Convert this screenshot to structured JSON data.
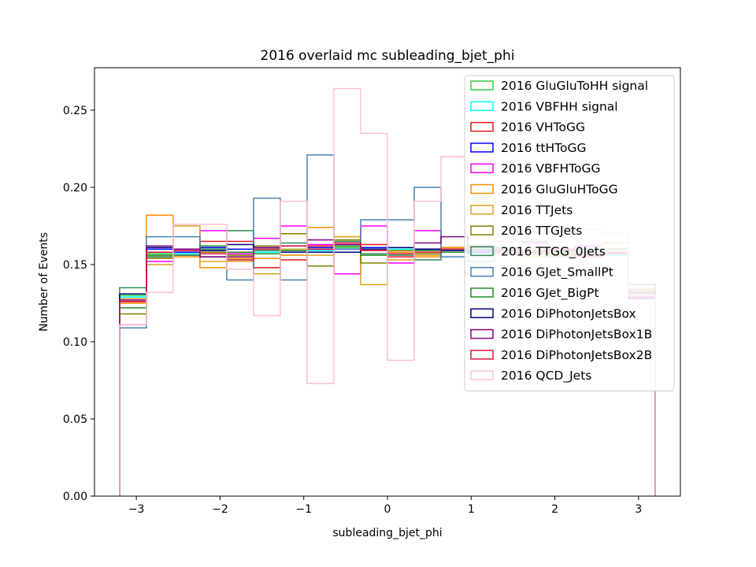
{
  "chart_data": {
    "type": "histogram-step",
    "title": "2016 overlaid mc subleading_bjet_phi",
    "xlabel": "subleading_bjet_phi",
    "ylabel": "Number of Events",
    "xlim": [
      -3.5,
      3.5
    ],
    "ylim": [
      0,
      0.2775
    ],
    "xticks": [
      -3,
      -2,
      -1,
      0,
      1,
      2,
      3
    ],
    "xtick_labels": [
      "−3",
      "−2",
      "−1",
      "0",
      "1",
      "2",
      "3"
    ],
    "yticks": [
      0.0,
      0.05,
      0.1,
      0.15,
      0.2,
      0.25
    ],
    "ytick_labels": [
      "0.00",
      "0.05",
      "0.10",
      "0.15",
      "0.20",
      "0.25"
    ],
    "legend_position": "top-right",
    "bin_edges": [
      -3.2,
      -2.88,
      -2.56,
      -2.24,
      -1.92,
      -1.6,
      -1.28,
      -0.96,
      -0.64,
      -0.32,
      0.0,
      0.32,
      0.64,
      0.96,
      1.28,
      1.6,
      1.92,
      2.24,
      2.56,
      2.88,
      3.2
    ],
    "series": [
      {
        "name": "2016 GluGluToHH signal",
        "color": "#2ecc40",
        "values": [
          0.13,
          0.157,
          0.158,
          0.16,
          0.158,
          0.16,
          0.159,
          0.16,
          0.161,
          0.16,
          0.158,
          0.157,
          0.159,
          0.158,
          0.159,
          0.158,
          0.157,
          0.158,
          0.157,
          0.131
        ]
      },
      {
        "name": "2016 VBFHH signal",
        "color": "#00ffff",
        "values": [
          0.129,
          0.158,
          0.157,
          0.159,
          0.157,
          0.158,
          0.16,
          0.159,
          0.16,
          0.161,
          0.16,
          0.159,
          0.16,
          0.157,
          0.158,
          0.159,
          0.158,
          0.157,
          0.156,
          0.13
        ]
      },
      {
        "name": "2016 VHToGG",
        "color": "#e41a1c",
        "values": [
          0.126,
          0.155,
          0.156,
          0.165,
          0.165,
          0.148,
          0.153,
          0.162,
          0.158,
          0.163,
          0.155,
          0.16,
          0.161,
          0.158,
          0.157,
          0.159,
          0.156,
          0.155,
          0.157,
          0.129
        ]
      },
      {
        "name": "2016 ttHToGG",
        "color": "#0000ff",
        "values": [
          0.131,
          0.16,
          0.158,
          0.161,
          0.16,
          0.159,
          0.158,
          0.161,
          0.16,
          0.161,
          0.159,
          0.16,
          0.158,
          0.159,
          0.16,
          0.158,
          0.159,
          0.157,
          0.158,
          0.128
        ]
      },
      {
        "name": "2016 VBFHToGG",
        "color": "#ff00ff",
        "values": [
          0.111,
          0.152,
          0.16,
          0.172,
          0.157,
          0.167,
          0.175,
          0.163,
          0.144,
          0.175,
          0.151,
          0.172,
          0.159,
          0.16,
          0.158,
          0.164,
          0.16,
          0.162,
          0.158,
          0.132
        ]
      },
      {
        "name": "2016 GluGluHToGG",
        "color": "#ff8c00",
        "values": [
          0.125,
          0.182,
          0.155,
          0.148,
          0.154,
          0.154,
          0.156,
          0.174,
          0.168,
          0.16,
          0.158,
          0.155,
          0.161,
          0.157,
          0.16,
          0.158,
          0.156,
          0.157,
          0.16,
          0.13
        ]
      },
      {
        "name": "2016 TTJets",
        "color": "#daa520",
        "values": [
          0.128,
          0.15,
          0.175,
          0.152,
          0.152,
          0.144,
          0.16,
          0.156,
          0.168,
          0.137,
          0.153,
          0.156,
          0.158,
          0.162,
          0.16,
          0.155,
          0.16,
          0.158,
          0.164,
          0.133
        ]
      },
      {
        "name": "2016 TTGJets",
        "color": "#808000",
        "values": [
          0.118,
          0.154,
          0.156,
          0.158,
          0.156,
          0.162,
          0.17,
          0.149,
          0.166,
          0.151,
          0.159,
          0.157,
          0.16,
          0.158,
          0.159,
          0.157,
          0.158,
          0.159,
          0.157,
          0.134
        ]
      },
      {
        "name": "2016 TTGG_0Jets",
        "color": "#2e8b57",
        "values": [
          0.135,
          0.155,
          0.156,
          0.16,
          0.172,
          0.159,
          0.164,
          0.158,
          0.165,
          0.157,
          0.156,
          0.153,
          0.158,
          0.157,
          0.161,
          0.165,
          0.159,
          0.16,
          0.158,
          0.137
        ]
      },
      {
        "name": "2016 GJet_SmallPt",
        "color": "#4682b4",
        "values": [
          0.109,
          0.168,
          0.168,
          0.155,
          0.14,
          0.193,
          0.14,
          0.221,
          0.16,
          0.179,
          0.179,
          0.2,
          0.155,
          0.152,
          0.158,
          0.16,
          0.155,
          0.159,
          0.157,
          0.13
        ]
      },
      {
        "name": "2016 GJet_BigPt",
        "color": "#228b22",
        "values": [
          0.122,
          0.156,
          0.159,
          0.162,
          0.158,
          0.157,
          0.159,
          0.16,
          0.162,
          0.156,
          0.157,
          0.159,
          0.158,
          0.16,
          0.158,
          0.159,
          0.157,
          0.158,
          0.16,
          0.131
        ]
      },
      {
        "name": "2016 DiPhotonJetsBox",
        "color": "#000080",
        "values": [
          0.131,
          0.161,
          0.159,
          0.159,
          0.163,
          0.161,
          0.158,
          0.158,
          0.158,
          0.16,
          0.161,
          0.16,
          0.159,
          0.158,
          0.159,
          0.158,
          0.159,
          0.157,
          0.158,
          0.13
        ]
      },
      {
        "name": "2016 DiPhotonJetsBox1B",
        "color": "#800080",
        "values": [
          0.127,
          0.162,
          0.16,
          0.155,
          0.155,
          0.161,
          0.162,
          0.166,
          0.163,
          0.159,
          0.157,
          0.164,
          0.168,
          0.162,
          0.16,
          0.158,
          0.159,
          0.156,
          0.157,
          0.132
        ]
      },
      {
        "name": "2016 DiPhotonJetsBox2B",
        "color": "#dc143c",
        "values": [
          0.126,
          0.158,
          0.159,
          0.157,
          0.153,
          0.16,
          0.162,
          0.16,
          0.164,
          0.159,
          0.157,
          0.158,
          0.16,
          0.161,
          0.159,
          0.158,
          0.16,
          0.157,
          0.158,
          0.129
        ]
      },
      {
        "name": "2016 QCD_Jets",
        "color": "#ffc0cb",
        "values": [
          0.111,
          0.132,
          0.176,
          0.176,
          0.147,
          0.117,
          0.191,
          0.073,
          0.264,
          0.235,
          0.088,
          0.191,
          0.22,
          0.185,
          0.165,
          0.16,
          0.173,
          0.173,
          0.17,
          0.13
        ]
      }
    ]
  }
}
